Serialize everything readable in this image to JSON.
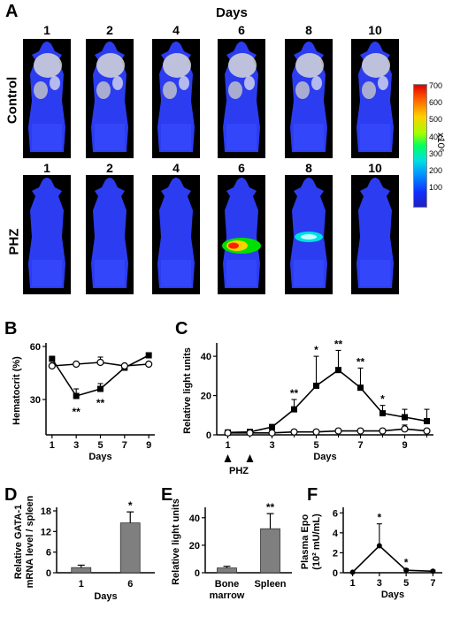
{
  "panel_A": {
    "letter": "A",
    "days_heading": "Days",
    "control_label": "Control",
    "phz_label": "PHZ",
    "control_days": [
      "1",
      "2",
      "4",
      "6",
      "8",
      "10"
    ],
    "phz_days": [
      "1",
      "2",
      "4",
      "6",
      "8",
      "10"
    ],
    "colorbar": {
      "ticks": [
        "700",
        "600",
        "500",
        "400",
        "300",
        "200",
        "100"
      ],
      "unit_label": "x10⁶",
      "colors": [
        "#ff0000",
        "#ff8000",
        "#ffff00",
        "#00ff40",
        "#00c0ff",
        "#0040ff",
        "#2020ff"
      ]
    }
  },
  "chart_data": [
    {
      "id": "B",
      "type": "line",
      "letter": "B",
      "xlabel": "Days",
      "ylabel": "Hematocrit (%)",
      "xticks": [
        "1",
        "3",
        "5",
        "7",
        "9"
      ],
      "yticks": [
        "30",
        "60"
      ],
      "xlim": [
        0.5,
        9.5
      ],
      "ylim": [
        10,
        60
      ],
      "series": [
        {
          "marker": "filled-square",
          "x": [
            1,
            3,
            5,
            7,
            9
          ],
          "y": [
            53,
            32,
            36,
            48,
            55
          ],
          "err": [
            0,
            4,
            3,
            1,
            0
          ]
        },
        {
          "marker": "open-circle",
          "x": [
            1,
            3,
            5,
            7,
            9
          ],
          "y": [
            49,
            50,
            51,
            49,
            50
          ],
          "err": [
            0,
            0,
            3,
            0,
            0
          ]
        }
      ],
      "annotations": [
        {
          "x": 3,
          "text": "**"
        },
        {
          "x": 5,
          "text": "**"
        }
      ]
    },
    {
      "id": "C",
      "type": "line",
      "letter": "C",
      "xlabel": "Days",
      "ylabel": "Relative light units",
      "xticks": [
        "1",
        "3",
        "5",
        "7",
        "9"
      ],
      "yticks": [
        "0",
        "20",
        "40"
      ],
      "xlim": [
        0.5,
        10.3
      ],
      "ylim": [
        0,
        45
      ],
      "phz_label": "PHZ",
      "phz_arrows_at": [
        1,
        2
      ],
      "series": [
        {
          "marker": "filled-square",
          "x": [
            1,
            2,
            3,
            4,
            5,
            6,
            7,
            8,
            9,
            10
          ],
          "y": [
            1.2,
            1.5,
            4,
            13,
            25,
            33,
            24,
            11,
            9,
            7
          ],
          "err": [
            0,
            0,
            1,
            5,
            15,
            10,
            10,
            4,
            4,
            6
          ]
        },
        {
          "marker": "open-circle",
          "x": [
            1,
            2,
            3,
            4,
            5,
            6,
            7,
            8,
            9,
            10
          ],
          "y": [
            1,
            1,
            1,
            1.5,
            1.5,
            2,
            2,
            2,
            3,
            2
          ],
          "err": [
            0,
            0,
            0,
            0,
            0,
            0,
            0,
            0,
            2,
            0
          ]
        }
      ],
      "annotations": [
        {
          "x": 4,
          "text": "**"
        },
        {
          "x": 5,
          "text": "*"
        },
        {
          "x": 6,
          "text": "**"
        },
        {
          "x": 7,
          "text": "**"
        },
        {
          "x": 8,
          "text": "*"
        }
      ]
    },
    {
      "id": "D",
      "type": "bar",
      "letter": "D",
      "xlabel": "Days",
      "ylabel_lines": [
        "Relative GATA-1",
        "mRNA level / spleen"
      ],
      "categories": [
        "1",
        "6"
      ],
      "values": [
        1.5,
        14.5
      ],
      "err": [
        0.7,
        3.2
      ],
      "yticks": [
        "0",
        "6",
        "12",
        "18"
      ],
      "ylim": [
        0,
        18
      ],
      "annotations": [
        {
          "index": 1,
          "text": "*"
        }
      ]
    },
    {
      "id": "E",
      "type": "bar",
      "letter": "E",
      "ylabel": "Relative light units",
      "categories": [
        "Bone\nmarrow",
        "Spleen"
      ],
      "values": [
        3.5,
        32
      ],
      "err": [
        1.2,
        11
      ],
      "yticks": [
        "0",
        "20",
        "40"
      ],
      "ylim": [
        0,
        45
      ],
      "annotations": [
        {
          "index": 1,
          "text": "**"
        }
      ]
    },
    {
      "id": "F",
      "type": "line",
      "letter": "F",
      "xlabel": "Days",
      "ylabel_lines": [
        "Plasma Epo",
        "(10² mU/mL)"
      ],
      "xticks": [
        "1",
        "3",
        "5",
        "7"
      ],
      "yticks": [
        "0",
        "2",
        "4",
        "6"
      ],
      "xlim": [
        0.3,
        7.7
      ],
      "ylim": [
        0,
        6.2
      ],
      "series": [
        {
          "marker": "filled-circle",
          "x": [
            1,
            3,
            5,
            7
          ],
          "y": [
            0.05,
            2.7,
            0.25,
            0.15
          ],
          "err": [
            0,
            2.2,
            0.15,
            0.1
          ]
        }
      ],
      "annotations": [
        {
          "x": 3,
          "text": "*"
        },
        {
          "x": 5,
          "text": "*"
        }
      ]
    }
  ]
}
